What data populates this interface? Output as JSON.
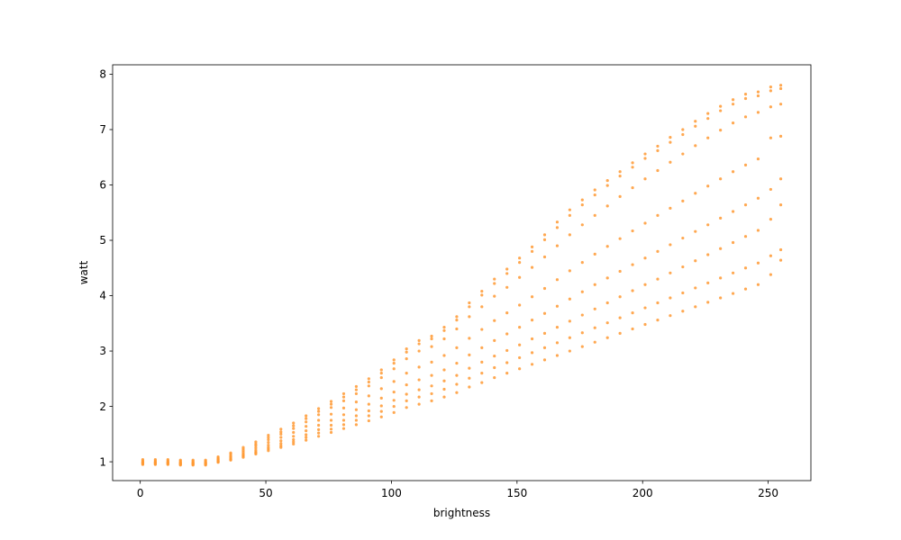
{
  "chart_data": {
    "type": "scatter",
    "xlabel": "brightness",
    "ylabel": "watt",
    "xlim": [
      -11,
      267
    ],
    "ylim": [
      0.66,
      8.17
    ],
    "x_ticks": [
      0,
      50,
      100,
      150,
      200,
      250
    ],
    "y_ticks": [
      1,
      2,
      3,
      4,
      5,
      6,
      7,
      8
    ],
    "grid": false,
    "marker_color": "#ff9933",
    "marker_shape": "circle",
    "point_groups_note": "",
    "x": [
      1,
      6,
      11,
      16,
      21,
      26,
      31,
      36,
      41,
      46,
      51,
      56,
      61,
      66,
      71,
      76,
      81,
      86,
      91,
      96,
      101,
      106,
      111,
      116,
      121,
      126,
      131,
      136,
      141,
      146,
      151,
      156,
      161,
      166,
      171,
      176,
      181,
      186,
      191,
      196,
      201,
      206,
      211,
      216,
      221,
      226,
      231,
      236,
      241,
      246,
      251,
      255
    ],
    "series": [
      {
        "values": [
          1.04,
          1.04,
          1.04,
          1.03,
          1.03,
          1.03,
          1.09,
          1.16,
          1.26,
          1.36,
          1.48,
          1.59,
          1.7,
          1.83,
          1.96,
          2.09,
          2.23,
          2.36,
          2.5,
          2.66,
          2.84,
          3.04,
          3.19,
          3.27,
          3.43,
          3.62,
          3.87,
          4.08,
          4.3,
          4.48,
          4.68,
          4.88,
          5.1,
          5.33,
          5.55,
          5.73,
          5.91,
          6.08,
          6.24,
          6.4,
          6.56,
          6.7,
          6.86,
          7.0,
          7.15,
          7.29,
          7.42,
          7.54,
          7.64,
          7.68,
          7.77,
          7.8
        ]
      },
      {
        "values": [
          1.02,
          1.02,
          1.02,
          1.01,
          1.01,
          1.01,
          1.07,
          1.14,
          1.23,
          1.32,
          1.44,
          1.54,
          1.65,
          1.78,
          1.91,
          2.04,
          2.17,
          2.3,
          2.44,
          2.6,
          2.78,
          2.98,
          3.13,
          3.22,
          3.37,
          3.56,
          3.8,
          4.01,
          4.22,
          4.4,
          4.6,
          4.8,
          5.01,
          5.23,
          5.45,
          5.64,
          5.82,
          5.99,
          6.16,
          6.32,
          6.48,
          6.62,
          6.77,
          6.91,
          7.06,
          7.2,
          7.34,
          7.46,
          7.56,
          7.61,
          7.7,
          7.74
        ]
      },
      {
        "values": [
          1.0,
          1.0,
          1.0,
          0.99,
          0.99,
          0.99,
          1.05,
          1.11,
          1.2,
          1.29,
          1.4,
          1.5,
          1.6,
          1.72,
          1.85,
          1.98,
          2.1,
          2.23,
          2.37,
          2.52,
          2.68,
          2.86,
          3.0,
          3.08,
          3.22,
          3.4,
          3.62,
          3.8,
          3.99,
          4.15,
          4.33,
          4.51,
          4.7,
          4.9,
          5.1,
          5.28,
          5.45,
          5.62,
          5.79,
          5.95,
          6.11,
          6.26,
          6.41,
          6.56,
          6.71,
          6.85,
          6.99,
          7.12,
          7.23,
          7.31,
          7.41,
          7.46
        ]
      },
      {
        "values": [
          0.99,
          0.99,
          0.99,
          0.98,
          0.98,
          0.98,
          1.04,
          1.09,
          1.17,
          1.25,
          1.35,
          1.44,
          1.53,
          1.64,
          1.75,
          1.86,
          1.97,
          2.08,
          2.19,
          2.32,
          2.45,
          2.6,
          2.71,
          2.8,
          2.92,
          3.06,
          3.23,
          3.39,
          3.55,
          3.69,
          3.83,
          3.98,
          4.13,
          4.29,
          4.45,
          4.6,
          4.75,
          4.89,
          5.03,
          5.17,
          5.31,
          5.45,
          5.58,
          5.71,
          5.85,
          5.98,
          6.11,
          6.24,
          6.36,
          6.47,
          6.85,
          6.88
        ]
      },
      {
        "values": [
          0.98,
          0.98,
          0.98,
          0.97,
          0.97,
          0.97,
          1.02,
          1.07,
          1.14,
          1.21,
          1.3,
          1.38,
          1.46,
          1.56,
          1.66,
          1.75,
          1.85,
          1.94,
          2.04,
          2.15,
          2.26,
          2.39,
          2.48,
          2.56,
          2.66,
          2.78,
          2.93,
          3.06,
          3.19,
          3.31,
          3.43,
          3.56,
          3.68,
          3.81,
          3.94,
          4.07,
          4.2,
          4.32,
          4.44,
          4.56,
          4.68,
          4.8,
          4.92,
          5.04,
          5.16,
          5.28,
          5.4,
          5.52,
          5.64,
          5.76,
          5.92,
          6.11
        ]
      },
      {
        "values": [
          0.97,
          0.97,
          0.97,
          0.96,
          0.96,
          0.96,
          1.01,
          1.05,
          1.12,
          1.18,
          1.26,
          1.33,
          1.4,
          1.49,
          1.58,
          1.66,
          1.75,
          1.83,
          1.92,
          2.01,
          2.11,
          2.22,
          2.3,
          2.37,
          2.46,
          2.56,
          2.69,
          2.8,
          2.91,
          3.01,
          3.11,
          3.22,
          3.32,
          3.43,
          3.54,
          3.65,
          3.76,
          3.87,
          3.98,
          4.09,
          4.2,
          4.3,
          4.41,
          4.52,
          4.63,
          4.74,
          4.85,
          4.96,
          5.07,
          5.18,
          5.38,
          5.64
        ]
      },
      {
        "values": [
          0.96,
          0.96,
          0.96,
          0.95,
          0.95,
          0.95,
          1.0,
          1.04,
          1.1,
          1.16,
          1.23,
          1.29,
          1.36,
          1.44,
          1.52,
          1.59,
          1.67,
          1.75,
          1.83,
          1.91,
          2.0,
          2.1,
          2.17,
          2.23,
          2.31,
          2.4,
          2.51,
          2.6,
          2.7,
          2.79,
          2.88,
          2.97,
          3.06,
          3.15,
          3.24,
          3.33,
          3.42,
          3.51,
          3.6,
          3.69,
          3.78,
          3.87,
          3.96,
          4.05,
          4.14,
          4.23,
          4.32,
          4.41,
          4.5,
          4.59,
          4.72,
          4.83
        ]
      },
      {
        "values": [
          0.95,
          0.95,
          0.95,
          0.94,
          0.94,
          0.94,
          0.99,
          1.03,
          1.08,
          1.14,
          1.2,
          1.26,
          1.32,
          1.39,
          1.46,
          1.53,
          1.6,
          1.67,
          1.74,
          1.81,
          1.89,
          1.98,
          2.04,
          2.1,
          2.17,
          2.25,
          2.35,
          2.43,
          2.52,
          2.6,
          2.68,
          2.76,
          2.84,
          2.92,
          3.0,
          3.08,
          3.16,
          3.24,
          3.32,
          3.4,
          3.48,
          3.56,
          3.64,
          3.72,
          3.8,
          3.88,
          3.96,
          4.04,
          4.12,
          4.2,
          4.38,
          4.64
        ]
      }
    ]
  }
}
